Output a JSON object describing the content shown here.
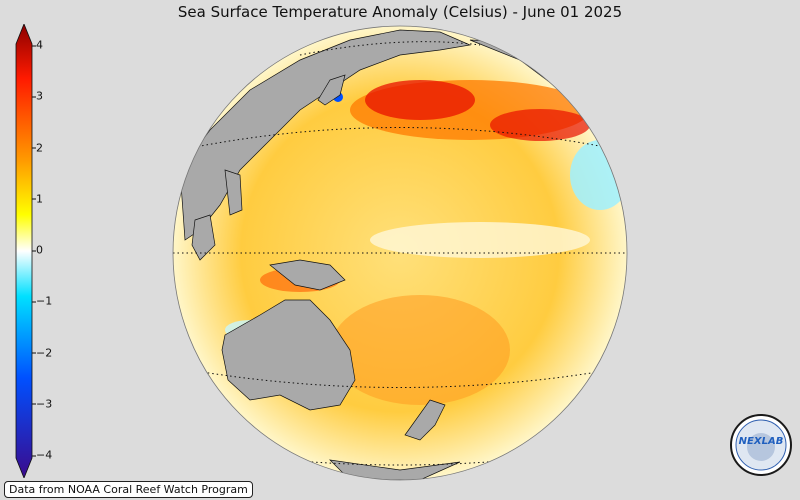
{
  "title": "Sea Surface Temperature Anomaly (Celsius) - June 01 2025",
  "colorbar": {
    "ticks": [
      "4",
      "3",
      "2",
      "1",
      "0",
      "−1",
      "−2",
      "−3",
      "−4"
    ],
    "tick_values": [
      4,
      3,
      2,
      1,
      0,
      -1,
      -2,
      -3,
      -4
    ],
    "range": [
      -4,
      4
    ],
    "colors": [
      "#3b0a8c",
      "#0050ff",
      "#00c8ff",
      "#ffffff",
      "#ffff00",
      "#ff9a00",
      "#ff1a00",
      "#8b0000"
    ]
  },
  "map": {
    "projection": "orthographic",
    "land_color": "#a9a9a9",
    "ocean_warm_color": "#ffd24a",
    "gridlines": "dotted"
  },
  "credit": "Data from NOAA Coral Reef Watch Program",
  "logo": {
    "text": "NEXLAB",
    "icon": "nexlab-logo"
  }
}
